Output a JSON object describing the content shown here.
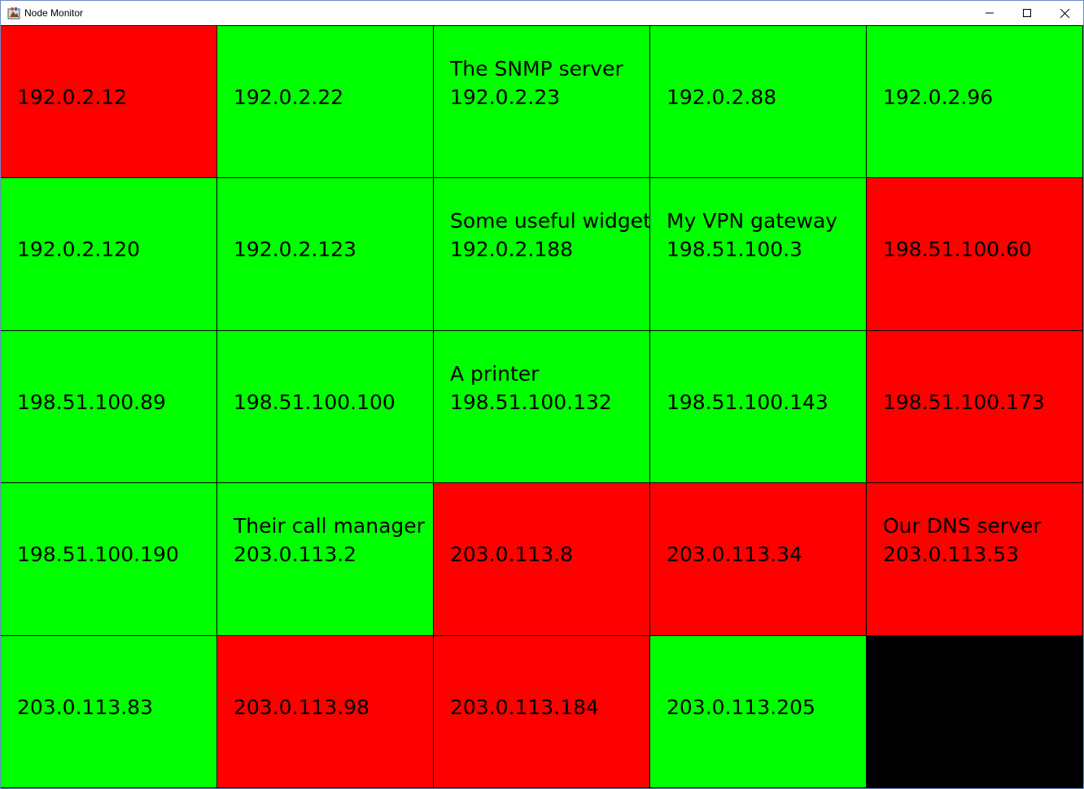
{
  "window": {
    "title": "Node Monitor",
    "icon": "java-app-icon",
    "controls": [
      "minimize-icon",
      "maximize-icon",
      "close-icon"
    ]
  },
  "colors": {
    "up": "#00ff00",
    "down": "#ff0000",
    "empty": "#000000"
  },
  "nodes": [
    {
      "label": "",
      "ip": "192.0.2.12",
      "status": "down"
    },
    {
      "label": "",
      "ip": "192.0.2.22",
      "status": "up"
    },
    {
      "label": "The SNMP server",
      "ip": "192.0.2.23",
      "status": "up"
    },
    {
      "label": "",
      "ip": "192.0.2.88",
      "status": "up"
    },
    {
      "label": "",
      "ip": "192.0.2.96",
      "status": "up"
    },
    {
      "label": "",
      "ip": "192.0.2.120",
      "status": "up"
    },
    {
      "label": "",
      "ip": "192.0.2.123",
      "status": "up"
    },
    {
      "label": "Some useful widget",
      "ip": "192.0.2.188",
      "status": "up"
    },
    {
      "label": "My VPN gateway",
      "ip": "198.51.100.3",
      "status": "up"
    },
    {
      "label": "",
      "ip": "198.51.100.60",
      "status": "down"
    },
    {
      "label": "",
      "ip": "198.51.100.89",
      "status": "up"
    },
    {
      "label": "",
      "ip": "198.51.100.100",
      "status": "up"
    },
    {
      "label": "A printer",
      "ip": "198.51.100.132",
      "status": "up"
    },
    {
      "label": "",
      "ip": "198.51.100.143",
      "status": "up"
    },
    {
      "label": "",
      "ip": "198.51.100.173",
      "status": "down"
    },
    {
      "label": "",
      "ip": "198.51.100.190",
      "status": "up"
    },
    {
      "label": "Their call manager",
      "ip": "203.0.113.2",
      "status": "up"
    },
    {
      "label": "",
      "ip": "203.0.113.8",
      "status": "down"
    },
    {
      "label": "",
      "ip": "203.0.113.34",
      "status": "down"
    },
    {
      "label": "Our DNS server",
      "ip": "203.0.113.53",
      "status": "down"
    },
    {
      "label": "",
      "ip": "203.0.113.83",
      "status": "up"
    },
    {
      "label": "",
      "ip": "203.0.113.98",
      "status": "down"
    },
    {
      "label": "",
      "ip": "203.0.113.184",
      "status": "down"
    },
    {
      "label": "",
      "ip": "203.0.113.205",
      "status": "up"
    },
    {
      "label": "",
      "ip": "",
      "status": "empty"
    }
  ]
}
